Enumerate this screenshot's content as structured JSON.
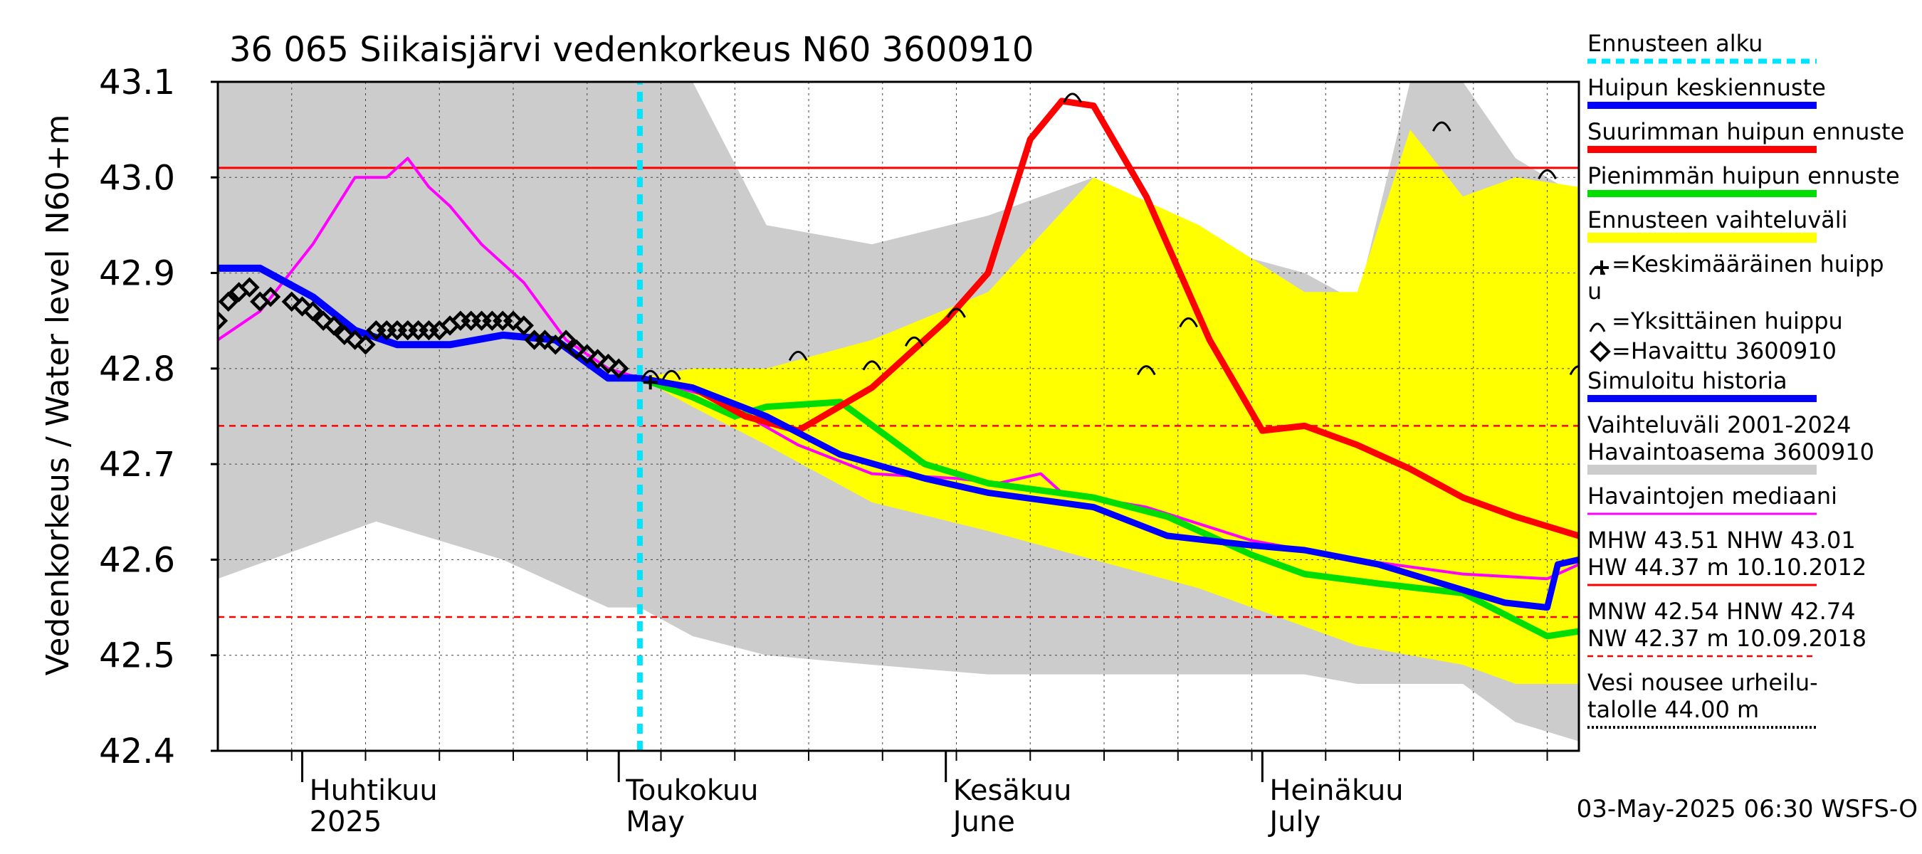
{
  "chart_data": {
    "type": "line",
    "title": "36 065 Siikaisjärvi vedenkorkeus N60 3600910",
    "ylabel_outer": "Vedenkorkeus / Water level",
    "ylabel_inner": "N60+m",
    "ylim": [
      42.4,
      43.1
    ],
    "yticks": [
      "42.4",
      "42.5",
      "42.6",
      "42.7",
      "42.8",
      "42.9",
      "43.0",
      "43.1"
    ],
    "xlim": [
      "2025-03-24",
      "2025-07-31"
    ],
    "month_labels": [
      {
        "fi": "Huhtikuu",
        "en": "2025",
        "date": "2025-04-01"
      },
      {
        "fi": "Toukokuu",
        "en": "May",
        "date": "2025-05-01"
      },
      {
        "fi": "Kesäkuu",
        "en": "June",
        "date": "2025-06-01"
      },
      {
        "fi": "Heinäkuu",
        "en": "July",
        "date": "2025-07-01"
      }
    ],
    "forecast_start": "2025-05-03",
    "reference_lines": [
      {
        "name": "NHW",
        "value": 43.01,
        "style": "solid",
        "color": "#ff0000"
      },
      {
        "name": "HNW",
        "value": 42.74,
        "style": "dashed",
        "color": "#ff0000"
      },
      {
        "name": "MNW",
        "value": 42.54,
        "style": "dashed",
        "color": "#ff0000"
      }
    ],
    "history_band": {
      "name": "Vaihteluväli 2001-2024",
      "color": "#cccccc",
      "x": [
        "2025-03-24",
        "2025-04-08",
        "2025-04-20",
        "2025-04-30",
        "2025-05-03",
        "2025-05-08",
        "2025-05-15",
        "2025-05-25",
        "2025-06-05",
        "2025-06-15",
        "2025-06-25",
        "2025-07-05",
        "2025-07-10",
        "2025-07-15",
        "2025-07-20",
        "2025-07-25",
        "2025-07-31"
      ],
      "upper": [
        43.1,
        43.1,
        43.1,
        43.1,
        43.1,
        43.1,
        42.95,
        42.93,
        42.96,
        43.0,
        42.93,
        42.9,
        42.87,
        43.1,
        43.1,
        43.02,
        42.98
      ],
      "lower": [
        42.58,
        42.64,
        42.6,
        42.55,
        42.55,
        42.52,
        42.5,
        42.49,
        42.48,
        42.48,
        42.48,
        42.48,
        42.47,
        42.47,
        42.47,
        42.43,
        42.41
      ]
    },
    "forecast_band": {
      "name": "Ennusteen vaihteluväli",
      "color": "#ffff00",
      "x": [
        "2025-05-03",
        "2025-05-08",
        "2025-05-15",
        "2025-05-25",
        "2025-06-05",
        "2025-06-15",
        "2025-06-25",
        "2025-07-05",
        "2025-07-10",
        "2025-07-15",
        "2025-07-20",
        "2025-07-25",
        "2025-07-31"
      ],
      "upper": [
        42.79,
        42.8,
        42.8,
        42.83,
        42.88,
        43.0,
        42.95,
        42.88,
        42.88,
        43.05,
        42.98,
        43.0,
        42.99
      ],
      "lower": [
        42.79,
        42.76,
        42.72,
        42.66,
        42.63,
        42.6,
        42.57,
        42.53,
        42.51,
        42.5,
        42.49,
        42.47,
        42.47
      ]
    },
    "series": [
      {
        "name": "Simuloitu historia",
        "color": "#0000ff",
        "x": [
          "2025-03-24",
          "2025-03-28",
          "2025-04-02",
          "2025-04-06",
          "2025-04-10",
          "2025-04-15",
          "2025-04-20",
          "2025-04-25",
          "2025-04-30",
          "2025-05-03"
        ],
        "values": [
          42.905,
          42.905,
          42.875,
          42.84,
          42.825,
          42.825,
          42.835,
          42.83,
          42.79,
          42.79
        ]
      },
      {
        "name": "Huipun keskiennuste",
        "color": "#0000ff",
        "x": [
          "2025-05-03",
          "2025-05-08",
          "2025-05-15",
          "2025-05-22",
          "2025-05-30",
          "2025-06-05",
          "2025-06-15",
          "2025-06-22",
          "2025-06-30",
          "2025-07-05",
          "2025-07-12",
          "2025-07-18",
          "2025-07-24",
          "2025-07-28",
          "2025-07-29",
          "2025-07-31"
        ],
        "values": [
          42.79,
          42.78,
          42.75,
          42.71,
          42.685,
          42.67,
          42.655,
          42.625,
          42.615,
          42.61,
          42.595,
          42.575,
          42.555,
          42.55,
          42.595,
          42.6
        ]
      },
      {
        "name": "Suurimman huipun ennuste",
        "color": "#ff0000",
        "x": [
          "2025-05-03",
          "2025-05-08",
          "2025-05-13",
          "2025-05-18",
          "2025-05-25",
          "2025-06-01",
          "2025-06-05",
          "2025-06-09",
          "2025-06-12",
          "2025-06-15",
          "2025-06-20",
          "2025-06-26",
          "2025-07-01",
          "2025-07-05",
          "2025-07-10",
          "2025-07-15",
          "2025-07-20",
          "2025-07-25",
          "2025-07-31"
        ],
        "values": [
          42.79,
          42.78,
          42.75,
          42.735,
          42.78,
          42.85,
          42.9,
          43.04,
          43.08,
          43.075,
          42.98,
          42.83,
          42.735,
          42.74,
          42.72,
          42.695,
          42.665,
          42.645,
          42.625
        ]
      },
      {
        "name": "Pienimmän huipun ennuste",
        "color": "#00dd00",
        "x": [
          "2025-05-03",
          "2025-05-08",
          "2025-05-12",
          "2025-05-15",
          "2025-05-22",
          "2025-05-30",
          "2025-06-05",
          "2025-06-15",
          "2025-06-22",
          "2025-06-30",
          "2025-07-05",
          "2025-07-12",
          "2025-07-20",
          "2025-07-28",
          "2025-07-31"
        ],
        "values": [
          42.79,
          42.77,
          42.75,
          42.76,
          42.765,
          42.7,
          42.68,
          42.665,
          42.645,
          42.605,
          42.585,
          42.575,
          42.565,
          42.52,
          42.525
        ]
      },
      {
        "name": "Havaintojen mediaani",
        "color": "#ff00ff",
        "x": [
          "2025-03-24",
          "2025-03-28",
          "2025-04-02",
          "2025-04-06",
          "2025-04-09",
          "2025-04-11",
          "2025-04-13",
          "2025-04-15",
          "2025-04-18",
          "2025-04-22",
          "2025-04-26",
          "2025-04-30",
          "2025-05-03",
          "2025-05-10",
          "2025-05-18",
          "2025-05-25",
          "2025-06-02",
          "2025-06-06",
          "2025-06-10",
          "2025-06-12",
          "2025-06-20",
          "2025-06-30",
          "2025-07-10",
          "2025-07-20",
          "2025-07-28",
          "2025-07-31"
        ],
        "values": [
          42.83,
          42.86,
          42.93,
          43.0,
          43.0,
          43.02,
          42.99,
          42.97,
          42.93,
          42.89,
          42.83,
          42.8,
          42.79,
          42.77,
          42.72,
          42.69,
          42.685,
          42.68,
          42.69,
          42.67,
          42.655,
          42.62,
          42.6,
          42.585,
          42.58,
          42.595
        ]
      },
      {
        "name": "Ennusteen alku",
        "color": "#00e5ff",
        "x": [
          "2025-05-03",
          "2025-05-03"
        ],
        "values": [
          42.4,
          43.1
        ]
      }
    ],
    "observed": {
      "name": "Havaittu 3600910",
      "x": [
        "2025-03-24",
        "2025-03-25",
        "2025-03-26",
        "2025-03-27",
        "2025-03-28",
        "2025-03-29",
        "2025-03-31",
        "2025-04-01",
        "2025-04-02",
        "2025-04-03",
        "2025-04-04",
        "2025-04-05",
        "2025-04-06",
        "2025-04-07",
        "2025-04-08",
        "2025-04-09",
        "2025-04-10",
        "2025-04-11",
        "2025-04-12",
        "2025-04-13",
        "2025-04-14",
        "2025-04-15",
        "2025-04-16",
        "2025-04-17",
        "2025-04-18",
        "2025-04-19",
        "2025-04-20",
        "2025-04-21",
        "2025-04-22",
        "2025-04-23",
        "2025-04-24",
        "2025-04-25",
        "2025-04-26",
        "2025-04-27",
        "2025-04-28",
        "2025-04-29",
        "2025-04-30",
        "2025-05-01"
      ],
      "values": [
        42.85,
        42.87,
        42.88,
        42.885,
        42.87,
        42.875,
        42.87,
        42.865,
        42.86,
        42.85,
        42.845,
        42.835,
        42.83,
        42.825,
        42.84,
        42.84,
        42.84,
        42.84,
        42.84,
        42.84,
        42.84,
        42.845,
        42.85,
        42.85,
        42.85,
        42.85,
        42.85,
        42.85,
        42.845,
        42.83,
        42.83,
        42.825,
        42.83,
        42.82,
        42.815,
        42.81,
        42.805,
        42.8
      ]
    },
    "peaks": [
      {
        "date": "2025-05-04",
        "value": 42.79,
        "type": "average"
      },
      {
        "date": "2025-05-06",
        "value": 42.79,
        "type": "single"
      },
      {
        "date": "2025-05-18",
        "value": 42.81,
        "type": "single"
      },
      {
        "date": "2025-05-25",
        "value": 42.8,
        "type": "single"
      },
      {
        "date": "2025-05-29",
        "value": 42.825,
        "type": "single"
      },
      {
        "date": "2025-06-02",
        "value": 42.855,
        "type": "single"
      },
      {
        "date": "2025-06-13",
        "value": 43.08,
        "type": "single"
      },
      {
        "date": "2025-06-20",
        "value": 42.795,
        "type": "single"
      },
      {
        "date": "2025-06-24",
        "value": 42.845,
        "type": "single"
      },
      {
        "date": "2025-07-18",
        "value": 43.05,
        "type": "single"
      },
      {
        "date": "2025-07-28",
        "value": 43.0,
        "type": "single"
      },
      {
        "date": "2025-07-31",
        "value": 42.795,
        "type": "single"
      }
    ],
    "legend": {
      "placement": "right",
      "items": [
        {
          "text": "Ennusteen alku",
          "swatch": "dashed",
          "color": "#00e5ff"
        },
        {
          "text": "Huipun keskiennuste",
          "swatch": "line",
          "color": "#0000ff"
        },
        {
          "text": "Suurimman huipun ennuste",
          "swatch": "line",
          "color": "#ff0000"
        },
        {
          "text": "Pienimmän huipun ennuste",
          "swatch": "line",
          "color": "#00dd00"
        },
        {
          "text": "Ennusteen vaihteluväli",
          "swatch": "band",
          "color": "#ffff00"
        },
        {
          "text": "=Keskimääräinen huipp",
          "text2": "u",
          "swatch": "avg-peak"
        },
        {
          "text": "=Yksittäinen huippu",
          "swatch": "peak"
        },
        {
          "text": "=Havaittu 3600910",
          "swatch": "diamond"
        },
        {
          "text": "Simuloitu historia",
          "swatch": "line",
          "color": "#0000ff"
        },
        {
          "text": "Vaihteluväli 2001-2024",
          "text2": " Havaintoasema 3600910",
          "swatch": "band",
          "color": "#cccccc"
        },
        {
          "text": "Havaintojen mediaani",
          "swatch": "thin",
          "color": "#ff00ff"
        },
        {
          "text": "MHW  43.51 NHW  43.01",
          "text2": "HW  44.37 m 10.10.2012",
          "swatch": "thin",
          "color": "#ff0000"
        },
        {
          "text": "MNW  42.54 HNW  42.74",
          "text2": "NW  42.37 m 10.09.2018",
          "swatch": "dashed-thin",
          "color": "#ff0000"
        },
        {
          "text": "Vesi nousee urheilu-",
          "text2": "talolle 44.00 m",
          "swatch": "dotted",
          "color": "#000000"
        }
      ]
    },
    "footer_timestamp": "03-May-2025 06:30 WSFS-O"
  }
}
